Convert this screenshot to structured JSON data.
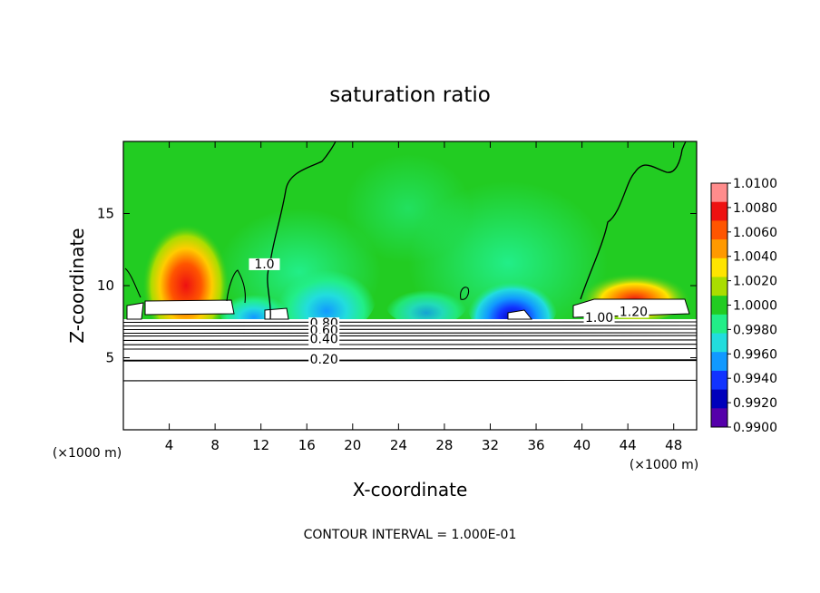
{
  "chart_data": {
    "type": "heatmap",
    "title": "saturation ratio",
    "xlabel": "X-coordinate",
    "ylabel": "Z-coordinate",
    "x_units": "(×1000 m)",
    "y_units": "(×1000 m)",
    "xlim": [
      0,
      50
    ],
    "ylim": [
      0,
      20
    ],
    "x_ticks": [
      4,
      8,
      12,
      16,
      20,
      24,
      28,
      32,
      36,
      40,
      44,
      48
    ],
    "y_ticks": [
      5,
      10,
      15
    ],
    "footer": "CONTOUR INTERVAL = 1.000E-01",
    "contour_labels": [
      {
        "text": "0.80",
        "x": 17.5,
        "y": 7.1
      },
      {
        "text": "0.60",
        "x": 17.5,
        "y": 6.6
      },
      {
        "text": "0.40",
        "x": 17.5,
        "y": 6.0
      },
      {
        "text": "0.20",
        "x": 17.5,
        "y": 4.6
      },
      {
        "text": "1.00",
        "x": 41.5,
        "y": 7.5
      },
      {
        "text": "1.20",
        "x": 44.5,
        "y": 7.9
      },
      {
        "text": "1.0",
        "x": 12.3,
        "y": 11.2
      }
    ],
    "contour_levels_y": [
      3.4,
      4.8,
      5.6,
      5.9,
      6.2,
      6.5,
      6.7,
      6.95,
      7.2,
      7.45
    ],
    "colorbar": {
      "ticks": [
        "1.0100",
        "1.0080",
        "1.0060",
        "1.0040",
        "1.0020",
        "1.0000",
        "0.9980",
        "0.9960",
        "0.9940",
        "0.9920",
        "0.9900"
      ],
      "colors": [
        "#ff8c8c",
        "#ee1111",
        "#ff5500",
        "#ff9900",
        "#ffe400",
        "#aadd00",
        "#22cc22",
        "#22ee88",
        "#22dddd",
        "#1199ff",
        "#1133ff",
        "#0000bb",
        "#5500aa"
      ]
    },
    "features": {
      "high_cells": [
        {
          "x": 5.5,
          "y": 11.0,
          "value": 1.008
        },
        {
          "x": 45.5,
          "y": 9.6,
          "value": 1.006
        }
      ],
      "low_cells": [
        {
          "x": 34.0,
          "y": 8.8,
          "value": 0.992
        },
        {
          "x": 18.0,
          "y": 9.5,
          "value": 0.996
        }
      ],
      "background_value": 1.0
    }
  }
}
